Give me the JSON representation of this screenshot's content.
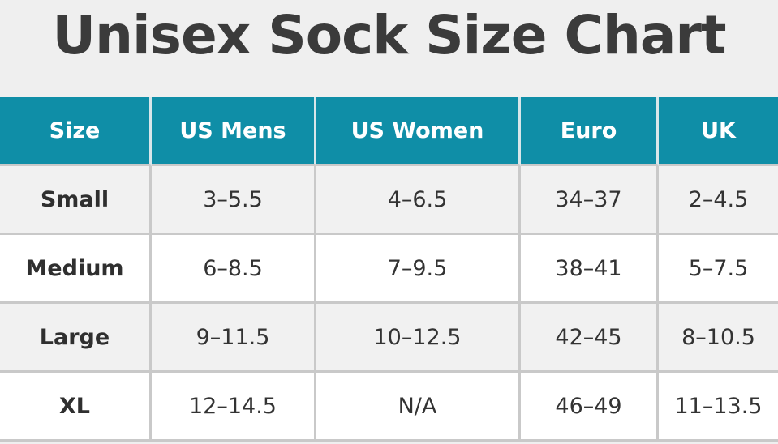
{
  "header": {
    "title": "Unisex Sock Size Chart"
  },
  "table": {
    "columns": [
      "Size",
      "US Mens",
      "US Women",
      "Euro",
      "UK"
    ],
    "rows": [
      [
        "Small",
        "3–5.5",
        "4–6.5",
        "34–37",
        "2–4.5"
      ],
      [
        "Medium",
        "6–8.5",
        "7–9.5",
        "38–41",
        "5–7.5"
      ],
      [
        "Large",
        "9–11.5",
        "10–12.5",
        "42–45",
        "8–10.5"
      ],
      [
        "XL",
        "12–14.5",
        "N/A",
        "46–49",
        "11–13.5"
      ]
    ]
  }
}
